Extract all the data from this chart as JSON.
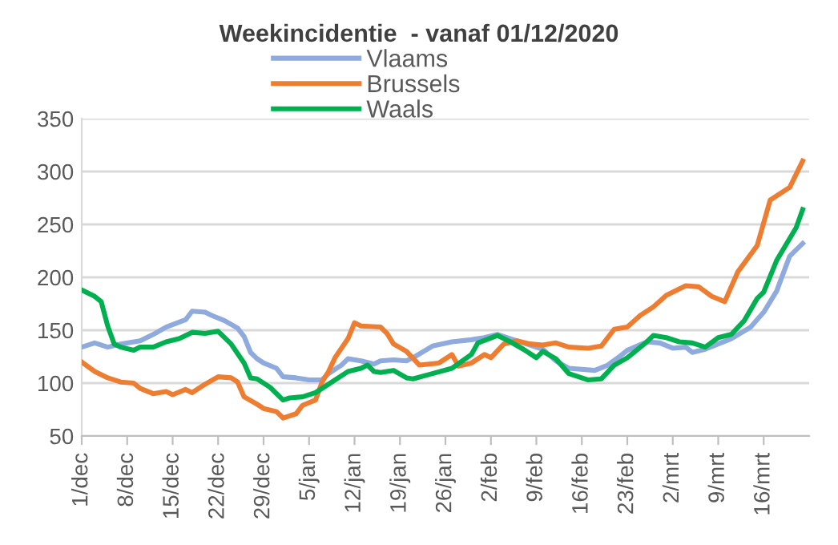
{
  "chart_data": {
    "type": "line",
    "title": "Weekincidentie  - vanaf 01/12/2020",
    "xlim": [
      "2020-12-01",
      "2021-03-23"
    ],
    "xticks": [
      {
        "value": "2020-12-01",
        "label": "1/dec"
      },
      {
        "value": "2020-12-08",
        "label": "8/dec"
      },
      {
        "value": "2020-12-15",
        "label": "15/dec"
      },
      {
        "value": "2020-12-22",
        "label": "22/dec"
      },
      {
        "value": "2020-12-29",
        "label": "29/dec"
      },
      {
        "value": "2021-01-05",
        "label": "5/jan"
      },
      {
        "value": "2021-01-12",
        "label": "12/jan"
      },
      {
        "value": "2021-01-19",
        "label": "19/jan"
      },
      {
        "value": "2021-01-26",
        "label": "26/jan"
      },
      {
        "value": "2021-02-02",
        "label": "2/feb"
      },
      {
        "value": "2021-02-09",
        "label": "9/feb"
      },
      {
        "value": "2021-02-16",
        "label": "16/feb"
      },
      {
        "value": "2021-02-23",
        "label": "23/feb"
      },
      {
        "value": "2021-03-02",
        "label": "2/mrt"
      },
      {
        "value": "2021-03-09",
        "label": "9/mrt"
      },
      {
        "value": "2021-03-16",
        "label": "16/mrt"
      }
    ],
    "ylim": [
      50,
      350
    ],
    "yticks": [
      50,
      100,
      150,
      200,
      250,
      300,
      350
    ],
    "grid": "y",
    "legend": "top",
    "marker": "none",
    "line_style": "solid",
    "series": [
      {
        "name": "Vlaams",
        "color": "#8faadc",
        "x": [
          "2020-12-01",
          "2020-12-03",
          "2020-12-05",
          "2020-12-07",
          "2020-12-10",
          "2020-12-12",
          "2020-12-14",
          "2020-12-17",
          "2020-12-18",
          "2020-12-20",
          "2020-12-21",
          "2020-12-23",
          "2020-12-25",
          "2020-12-26",
          "2020-12-27",
          "2020-12-28",
          "2020-12-29",
          "2020-12-31",
          "2021-01-01",
          "2021-01-03",
          "2021-01-05",
          "2021-01-07",
          "2021-01-08",
          "2021-01-10",
          "2021-01-11",
          "2021-01-13",
          "2021-01-15",
          "2021-01-16",
          "2021-01-18",
          "2021-01-20",
          "2021-01-21",
          "2021-01-24",
          "2021-01-27",
          "2021-01-30",
          "2021-02-01",
          "2021-02-03",
          "2021-02-05",
          "2021-02-07",
          "2021-02-10",
          "2021-02-12",
          "2021-02-14",
          "2021-02-18",
          "2021-02-20",
          "2021-02-22",
          "2021-02-23",
          "2021-02-26",
          "2021-02-28",
          "2021-03-02",
          "2021-03-04",
          "2021-03-05",
          "2021-03-07",
          "2021-03-09",
          "2021-03-11",
          "2021-03-14",
          "2021-03-16",
          "2021-03-18",
          "2021-03-20",
          "2021-03-22"
        ],
        "values": [
          134,
          138,
          134,
          137,
          140,
          146,
          153,
          160,
          168,
          167,
          164,
          159,
          152,
          144,
          129,
          123,
          119,
          114,
          106,
          105,
          103,
          103,
          109,
          117,
          123,
          121,
          118,
          121,
          122,
          121,
          124,
          135,
          139,
          141,
          143,
          146,
          142,
          138,
          132,
          121,
          114,
          112,
          117,
          126,
          131,
          139,
          138,
          133,
          134,
          129,
          132,
          137,
          142,
          153,
          167,
          187,
          220,
          232
        ]
      },
      {
        "name": "Brussels",
        "color": "#ed7d31",
        "x": [
          "2020-12-01",
          "2020-12-03",
          "2020-12-05",
          "2020-12-07",
          "2020-12-09",
          "2020-12-10",
          "2020-12-12",
          "2020-12-14",
          "2020-12-15",
          "2020-12-17",
          "2020-12-18",
          "2020-12-20",
          "2020-12-22",
          "2020-12-24",
          "2020-12-25",
          "2020-12-26",
          "2020-12-28",
          "2020-12-29",
          "2020-12-31",
          "2021-01-01",
          "2021-01-03",
          "2021-01-04",
          "2021-01-06",
          "2021-01-07",
          "2021-01-08",
          "2021-01-09",
          "2021-01-11",
          "2021-01-12",
          "2021-01-13",
          "2021-01-16",
          "2021-01-17",
          "2021-01-18",
          "2021-01-20",
          "2021-01-22",
          "2021-01-25",
          "2021-01-27",
          "2021-01-28",
          "2021-01-30",
          "2021-02-01",
          "2021-02-02",
          "2021-02-04",
          "2021-02-06",
          "2021-02-08",
          "2021-02-10",
          "2021-02-12",
          "2021-02-14",
          "2021-02-17",
          "2021-02-19",
          "2021-02-21",
          "2021-02-23",
          "2021-02-25",
          "2021-02-27",
          "2021-03-01",
          "2021-03-04",
          "2021-03-06",
          "2021-03-08",
          "2021-03-10",
          "2021-03-12",
          "2021-03-15",
          "2021-03-17",
          "2021-03-20",
          "2021-03-22"
        ],
        "values": [
          120,
          111,
          105,
          101,
          100,
          95,
          90,
          92,
          89,
          94,
          91,
          99,
          106,
          105,
          101,
          87,
          80,
          76,
          73,
          67,
          71,
          79,
          84,
          101,
          111,
          124,
          142,
          157,
          154,
          153,
          147,
          137,
          130,
          117,
          119,
          127,
          116,
          119,
          127,
          124,
          137,
          140,
          137,
          136,
          138,
          134,
          133,
          135,
          151,
          153,
          164,
          172,
          183,
          192,
          191,
          182,
          177,
          205,
          230,
          273,
          285,
          310
        ]
      },
      {
        "name": "Waals",
        "color": "#00b050",
        "x": [
          "2020-12-01",
          "2020-12-03",
          "2020-12-04",
          "2020-12-05",
          "2020-12-06",
          "2020-12-07",
          "2020-12-09",
          "2020-12-10",
          "2020-12-12",
          "2020-12-14",
          "2020-12-16",
          "2020-12-18",
          "2020-12-20",
          "2020-12-22",
          "2020-12-24",
          "2020-12-26",
          "2020-12-27",
          "2020-12-28",
          "2020-12-30",
          "2021-01-01",
          "2021-01-02",
          "2021-01-04",
          "2021-01-06",
          "2021-01-08",
          "2021-01-11",
          "2021-01-13",
          "2021-01-14",
          "2021-01-15",
          "2021-01-16",
          "2021-01-18",
          "2021-01-20",
          "2021-01-21",
          "2021-01-24",
          "2021-01-27",
          "2021-01-30",
          "2021-01-31",
          "2021-02-03",
          "2021-02-05",
          "2021-02-07",
          "2021-02-09",
          "2021-02-10",
          "2021-02-12",
          "2021-02-14",
          "2021-02-17",
          "2021-02-19",
          "2021-02-21",
          "2021-02-23",
          "2021-02-26",
          "2021-02-27",
          "2021-03-01",
          "2021-03-03",
          "2021-03-05",
          "2021-03-07",
          "2021-03-09",
          "2021-03-11",
          "2021-03-13",
          "2021-03-15",
          "2021-03-16",
          "2021-03-18",
          "2021-03-21",
          "2021-03-22"
        ],
        "values": [
          188,
          182,
          177,
          154,
          137,
          134,
          131,
          134,
          134,
          139,
          142,
          148,
          147,
          149,
          137,
          119,
          105,
          104,
          96,
          84,
          86,
          87,
          91,
          99,
          111,
          114,
          117,
          111,
          110,
          112,
          105,
          104,
          109,
          114,
          127,
          138,
          145,
          139,
          132,
          124,
          130,
          123,
          109,
          103,
          104,
          117,
          124,
          139,
          145,
          143,
          139,
          138,
          134,
          143,
          146,
          159,
          180,
          186,
          216,
          247,
          264
        ]
      }
    ]
  }
}
